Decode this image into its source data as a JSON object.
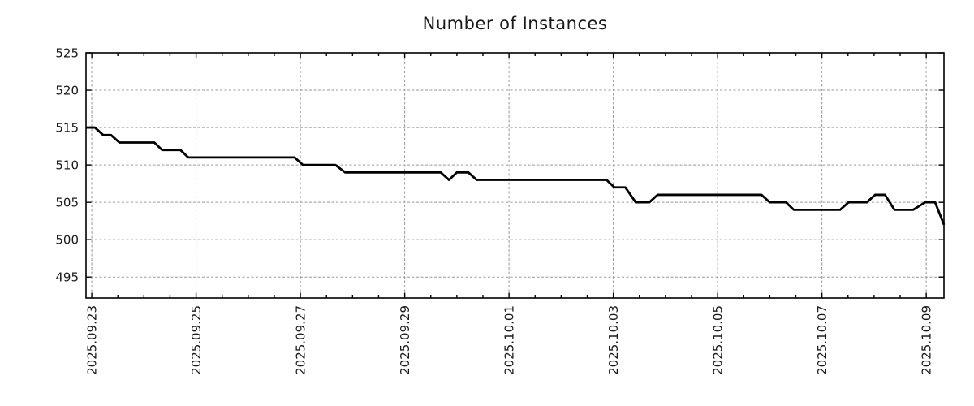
{
  "chart_data": {
    "type": "line",
    "title": "Number of Instances",
    "xlabel": "",
    "ylabel": "",
    "legend": "none",
    "grid": true,
    "x_axis": {
      "unit": "days since first labeled date",
      "xlim_days": [
        -0.11,
        16.34
      ],
      "minor_tick_interval_days": 0.5,
      "ticks": [
        {
          "day": 0,
          "label": "2025.09.23"
        },
        {
          "day": 2,
          "label": "2025.09.25"
        },
        {
          "day": 4,
          "label": "2025.09.27"
        },
        {
          "day": 6,
          "label": "2025.09.29"
        },
        {
          "day": 8,
          "label": "2025.10.01"
        },
        {
          "day": 10,
          "label": "2025.10.03"
        },
        {
          "day": 12,
          "label": "2025.10.05"
        },
        {
          "day": 14,
          "label": "2025.10.07"
        },
        {
          "day": 16,
          "label": "2025.10.09"
        }
      ]
    },
    "y_axis": {
      "ylim": [
        492.2,
        525
      ],
      "ticks": [
        495,
        500,
        505,
        510,
        515,
        520,
        525
      ]
    },
    "series": [
      {
        "name": "instances",
        "color": "#000000",
        "points": [
          [
            -0.11,
            515
          ],
          [
            0.06,
            515
          ],
          [
            0.22,
            514
          ],
          [
            0.37,
            514
          ],
          [
            0.53,
            513
          ],
          [
            1.2,
            513
          ],
          [
            1.35,
            512
          ],
          [
            1.7,
            512
          ],
          [
            1.85,
            511
          ],
          [
            3.89,
            511
          ],
          [
            4.05,
            510
          ],
          [
            4.67,
            510
          ],
          [
            4.86,
            509
          ],
          [
            6.69,
            509
          ],
          [
            6.85,
            508
          ],
          [
            7.0,
            509
          ],
          [
            7.22,
            509
          ],
          [
            7.38,
            508
          ],
          [
            9.87,
            508
          ],
          [
            10.02,
            507
          ],
          [
            10.23,
            507
          ],
          [
            10.43,
            505
          ],
          [
            10.69,
            505
          ],
          [
            10.85,
            506
          ],
          [
            12.84,
            506
          ],
          [
            13.0,
            505
          ],
          [
            13.31,
            505
          ],
          [
            13.46,
            504
          ],
          [
            14.35,
            504
          ],
          [
            14.51,
            505
          ],
          [
            14.86,
            505
          ],
          [
            15.02,
            506
          ],
          [
            15.21,
            506
          ],
          [
            15.39,
            504
          ],
          [
            15.75,
            504
          ],
          [
            15.98,
            505
          ],
          [
            16.17,
            505
          ],
          [
            16.34,
            502
          ]
        ]
      }
    ],
    "colors": {
      "line": "#000000",
      "grid": "#999999",
      "border": "#000000",
      "text": "#1a1a1a",
      "background": "#ffffff"
    }
  }
}
